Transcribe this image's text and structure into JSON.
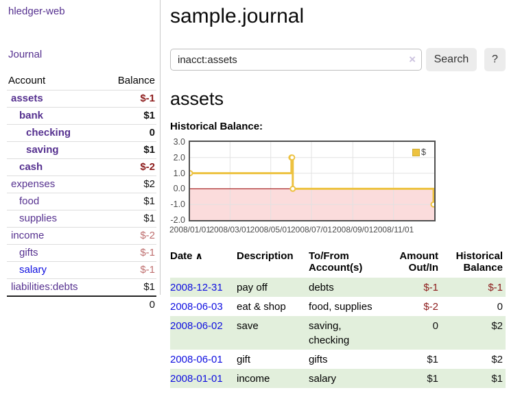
{
  "app": {
    "brand": "hledger-web",
    "journal_link": "Journal"
  },
  "sidebar": {
    "accounts": {
      "header": {
        "account": "Account",
        "balance": "Balance"
      },
      "rows": [
        {
          "name": "assets",
          "balance": "$-1",
          "level": 1,
          "bold": true,
          "name_color": "purple",
          "balance_color": "red"
        },
        {
          "name": "bank",
          "balance": "$1",
          "level": 2,
          "bold": true,
          "name_color": "purple",
          "balance_color": "black"
        },
        {
          "name": "checking",
          "balance": "0",
          "level": 3,
          "bold": true,
          "name_color": "purple",
          "balance_color": "black"
        },
        {
          "name": "saving",
          "balance": "$1",
          "level": 3,
          "bold": true,
          "name_color": "purple",
          "balance_color": "black"
        },
        {
          "name": "cash",
          "balance": "$-2",
          "level": 2,
          "bold": true,
          "name_color": "purple",
          "balance_color": "red"
        },
        {
          "name": "expenses",
          "balance": "$2",
          "level": 1,
          "bold": false,
          "name_color": "purple",
          "balance_color": "black"
        },
        {
          "name": "food",
          "balance": "$1",
          "level": 2,
          "bold": false,
          "name_color": "purple",
          "balance_color": "black"
        },
        {
          "name": "supplies",
          "balance": "$1",
          "level": 2,
          "bold": false,
          "name_color": "purple",
          "balance_color": "black"
        },
        {
          "name": "income",
          "balance": "$-2",
          "level": 1,
          "bold": false,
          "name_color": "purple",
          "balance_color": "rose"
        },
        {
          "name": "gifts",
          "balance": "$-1",
          "level": 2,
          "bold": false,
          "name_color": "purple",
          "balance_color": "rose"
        },
        {
          "name": "salary",
          "balance": "$-1",
          "level": 2,
          "bold": false,
          "name_color": "blue",
          "balance_color": "rose"
        },
        {
          "name": "liabilities:debts",
          "balance": "$1",
          "level": 1,
          "bold": false,
          "name_color": "purple",
          "balance_color": "black"
        }
      ],
      "total": "0"
    }
  },
  "main": {
    "title": "sample.journal",
    "search": {
      "value": "inacct:assets",
      "clear_icon": "×",
      "search_button": "Search",
      "help_button": "?"
    },
    "account_heading": "assets",
    "chart_title": "Historical Balance:"
  },
  "chart_data": {
    "type": "line",
    "step": true,
    "title": "Historical Balance:",
    "series": [
      {
        "name": "$",
        "color": "#EDC240",
        "points": [
          [
            "2008-01-01",
            1
          ],
          [
            "2008-06-01",
            2
          ],
          [
            "2008-06-02",
            2
          ],
          [
            "2008-06-03",
            0
          ],
          [
            "2008-12-31",
            -1
          ]
        ]
      }
    ],
    "x_range": [
      "2008-01-01",
      "2009-01-01"
    ],
    "x_tick_labels": [
      "2008/01/01",
      "2008/03/01",
      "2008/05/01",
      "2008/07/01",
      "2008/09/01",
      "2008/11/01"
    ],
    "y_tick_labels": [
      "3.0",
      "2.0",
      "1.0",
      "0.0",
      "-1.0",
      "-2.0"
    ],
    "ylim": [
      -2,
      3
    ],
    "grid": true,
    "legend": {
      "label": "$",
      "position": "top-right"
    },
    "colors": {
      "negative_region": "#FBDCDC",
      "zero_line": "#990000",
      "grid": "#E2E2E2",
      "border": "#4F4F4F"
    }
  },
  "transactions": {
    "header": {
      "date": "Date",
      "sort_icon": "∧",
      "description": "Description",
      "accounts": "To/From Account(s)",
      "amount": "Amount Out/In",
      "balance": "Historical Balance"
    },
    "rows": [
      {
        "date": "2008-12-31",
        "description": "pay off",
        "accounts": "debts",
        "amount": "$-1",
        "balance": "$-1"
      },
      {
        "date": "2008-06-03",
        "description": "eat & shop",
        "accounts": "food, supplies",
        "amount": "$-2",
        "balance": "0"
      },
      {
        "date": "2008-06-02",
        "description": "save",
        "accounts": "saving, checking",
        "amount": "0",
        "balance": "$2"
      },
      {
        "date": "2008-06-01",
        "description": "gift",
        "accounts": "gifts",
        "amount": "$1",
        "balance": "$2"
      },
      {
        "date": "2008-01-01",
        "description": "income",
        "accounts": "salary",
        "amount": "$1",
        "balance": "$1"
      }
    ]
  }
}
